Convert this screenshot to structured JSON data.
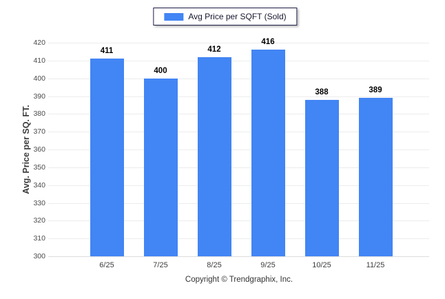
{
  "legend": {
    "label": "Avg Price per SQFT (Sold)",
    "swatch_color": "#4285f4"
  },
  "chart_data": {
    "type": "bar",
    "title": "",
    "categories": [
      "6/25",
      "7/25",
      "8/25",
      "9/25",
      "10/25",
      "11/25"
    ],
    "series": [
      {
        "name": "Avg Price per SQFT (Sold)",
        "values": [
          411,
          400,
          412,
          416,
          388,
          389
        ]
      }
    ],
    "xlabel": "",
    "ylabel": "Avg. Price per SQ. FT.",
    "ylim": [
      300,
      420
    ],
    "ytick_step": 10,
    "grid": true,
    "legend_position": "top",
    "bar_color": "#4285f4",
    "data_labels": true
  },
  "footer": {
    "copyright": "Copyright © Trendgraphix, Inc."
  }
}
